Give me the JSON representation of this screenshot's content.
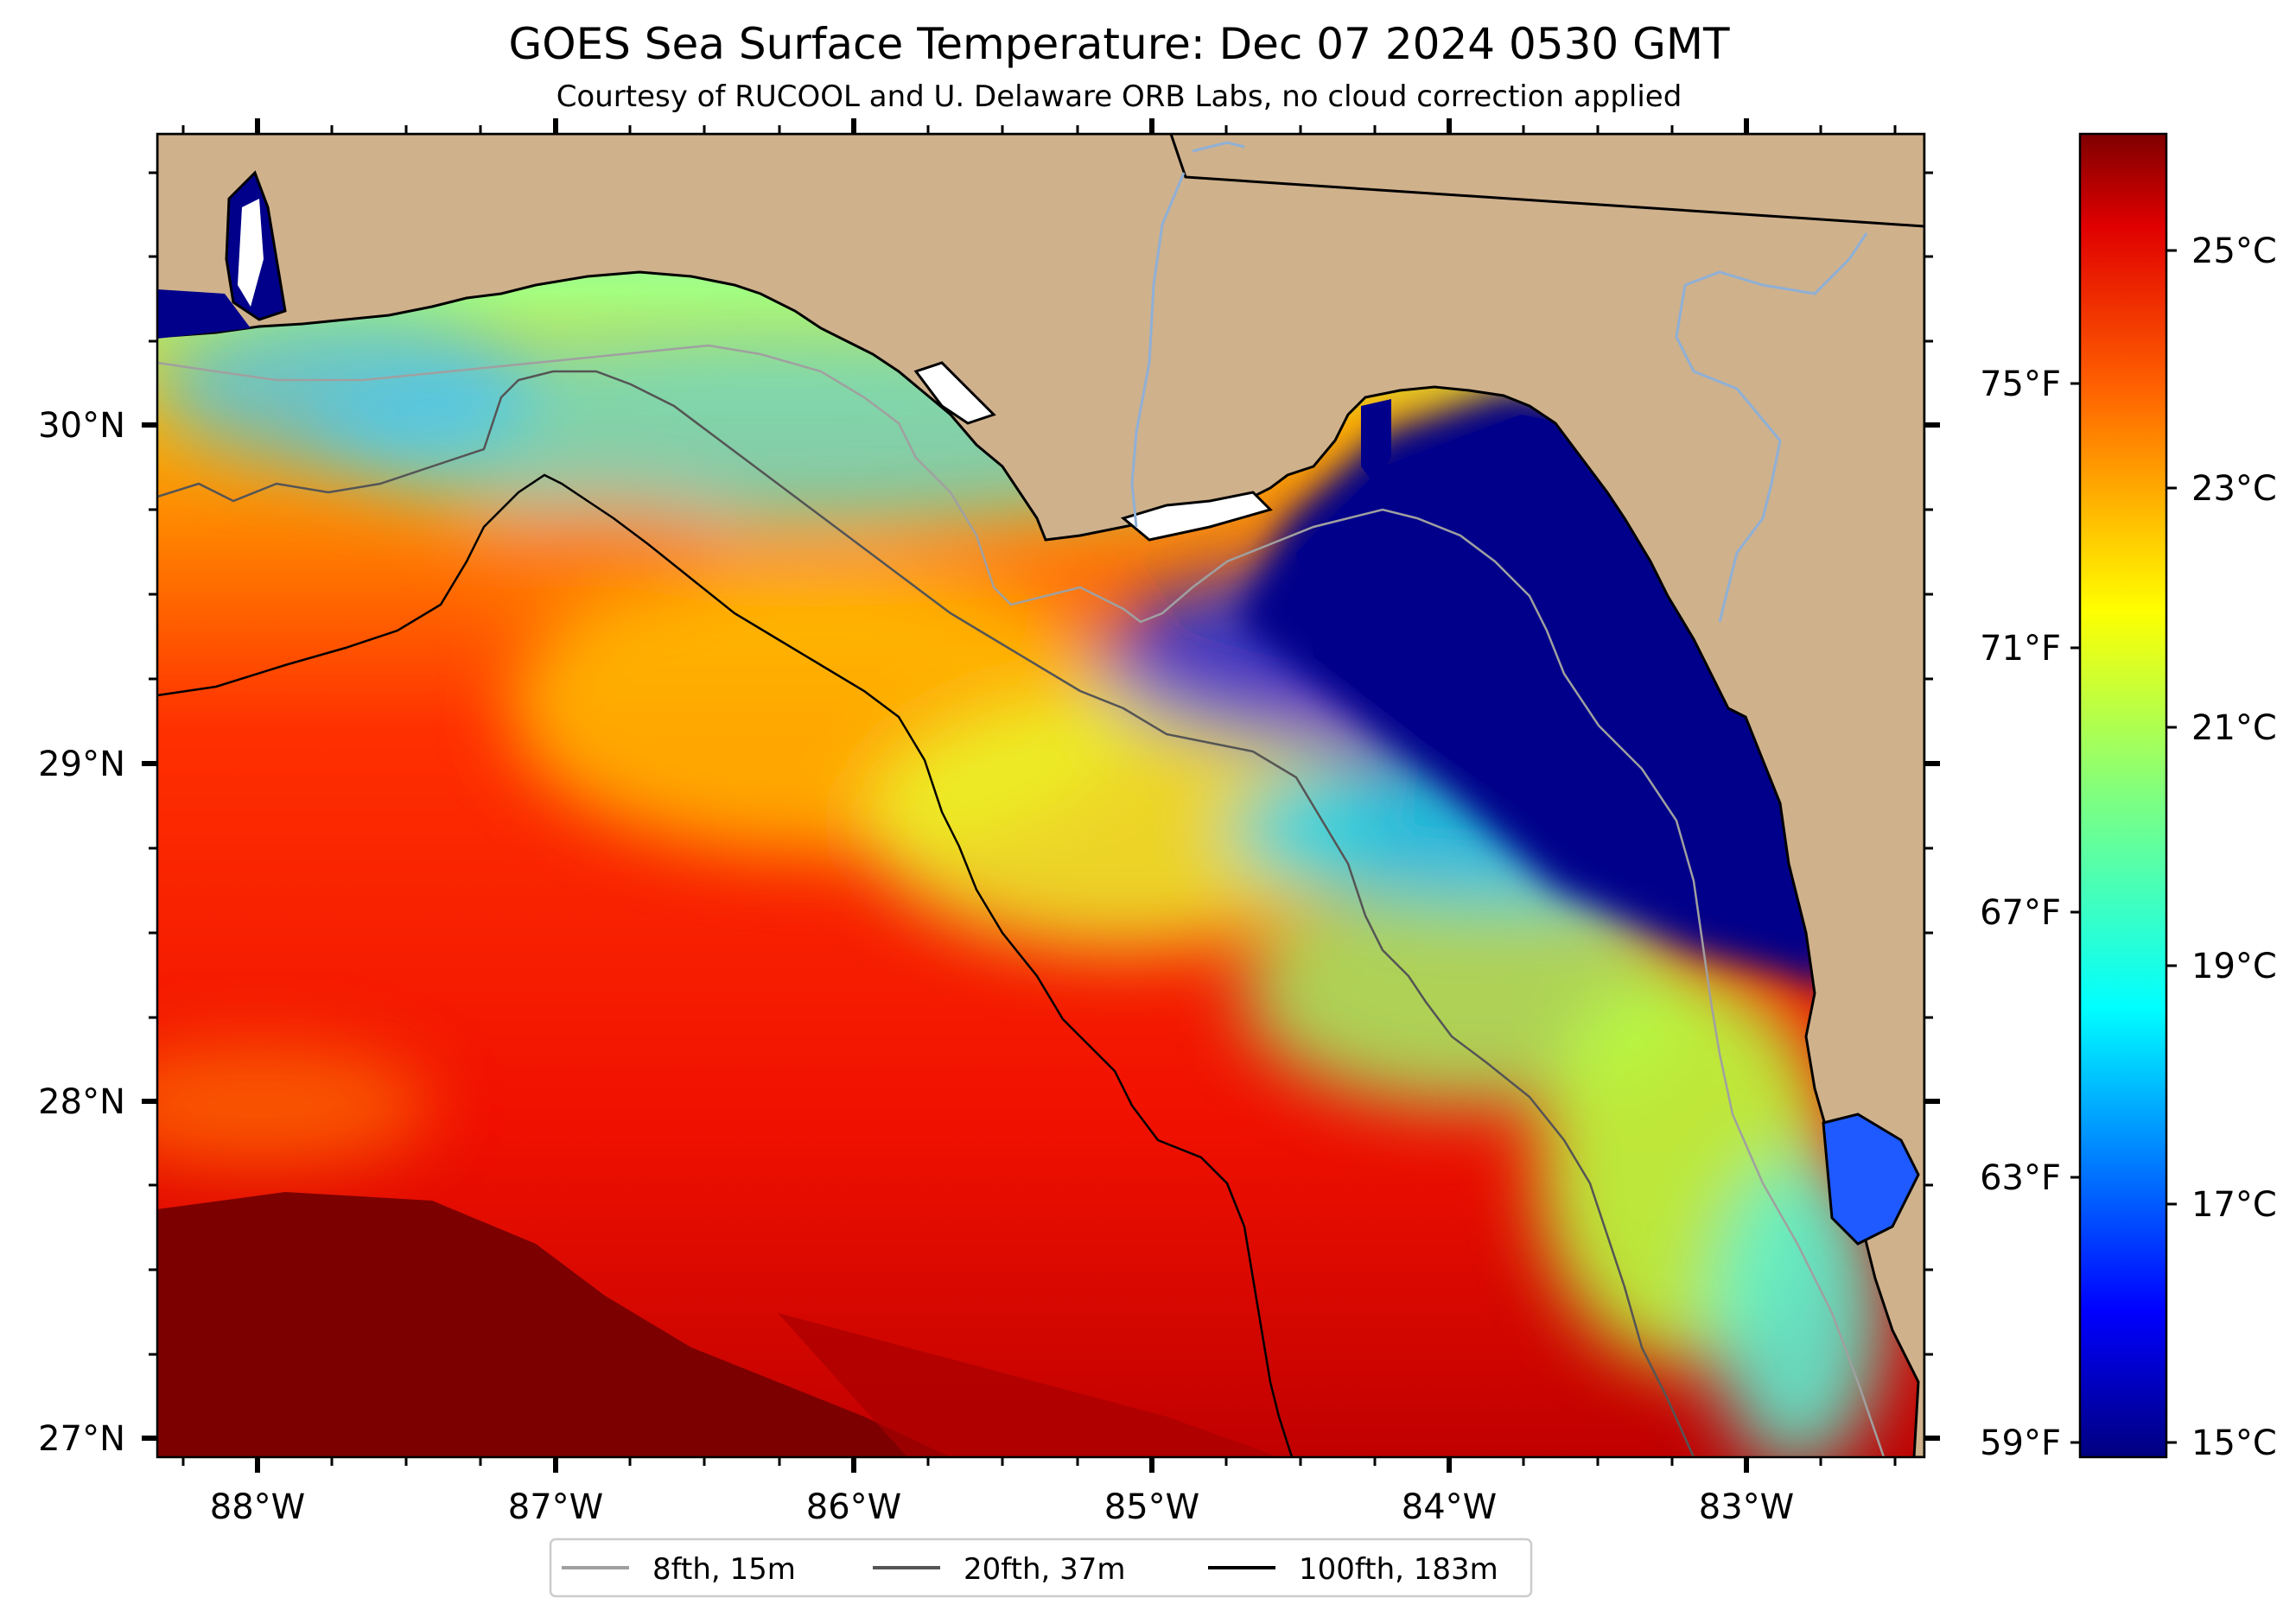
{
  "title": "GOES Sea Surface Temperature: Dec 07 2024 0530 GMT",
  "subtitle": "Courtesy of RUCOOL and U. Delaware ORB Labs, no cloud correction applied",
  "map": {
    "type": "sea-surface-temperature",
    "lon_ticks": [
      "88°W",
      "87°W",
      "86°W",
      "85°W",
      "84°W",
      "83°W"
    ],
    "lat_ticks": [
      "30°N",
      "29°N",
      "28°N",
      "27°N"
    ],
    "extent": {
      "lon": [
        -88.33,
        -82.38
      ],
      "lat": [
        26.93,
        30.86
      ]
    }
  },
  "colorbar": {
    "celsius": [
      "25°C",
      "23°C",
      "21°C",
      "19°C",
      "17°C",
      "15°C"
    ],
    "fahrenheit": [
      "75°F",
      "71°F",
      "67°F",
      "63°F",
      "59°F"
    ],
    "colormap": [
      "#7f0000",
      "#ff0000",
      "#ff8c00",
      "#ffff00",
      "#7fff7f",
      "#00ffff",
      "#007fff",
      "#0000ff",
      "#00007f"
    ],
    "range_c": [
      15,
      26
    ]
  },
  "legend": [
    {
      "label": "8fth, 15m",
      "color": "#a0a0a0"
    },
    {
      "label": "20fth, 37m",
      "color": "#555555"
    },
    {
      "label": "100fth, 183m",
      "color": "#000000"
    }
  ],
  "colors": {
    "land": "#cfb18c",
    "rivers": "#8fb0d6"
  }
}
